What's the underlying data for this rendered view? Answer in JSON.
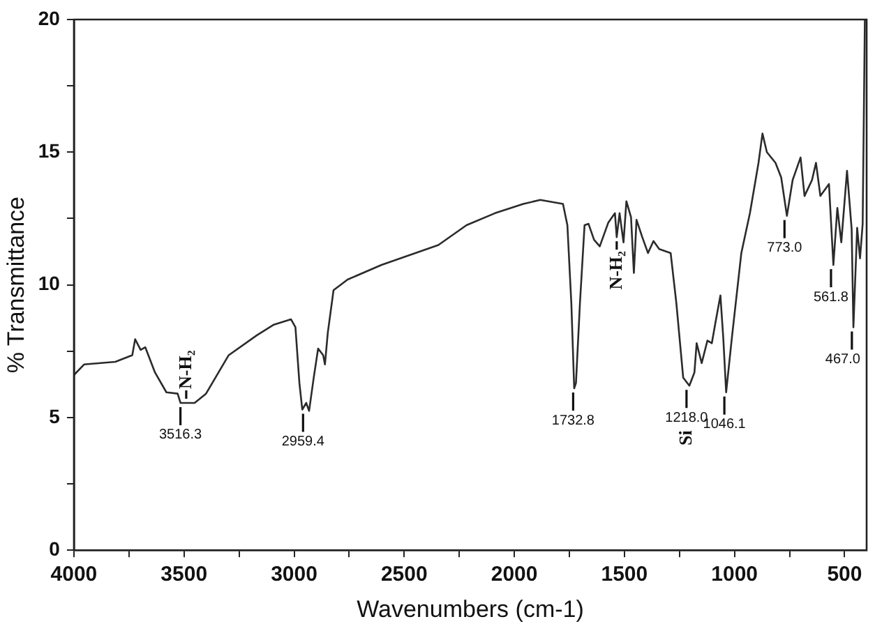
{
  "chart_data": {
    "type": "line",
    "xlabel": "Wavenumbers (cm-1)",
    "ylabel": "% Transmittance",
    "xlim": [
      4000,
      400
    ],
    "ylim": [
      0,
      20
    ],
    "xticks": [
      4000,
      {
        "value": 3750,
        "label": null
      },
      3500,
      {
        "value": 3250,
        "label": null
      },
      3000,
      {
        "value": 2750,
        "label": null
      },
      2500,
      {
        "value": 2250,
        "label": null
      },
      2000,
      {
        "value": 1750,
        "label": null
      },
      1500,
      {
        "value": 1250,
        "label": null
      },
      1000,
      {
        "value": 750,
        "label": null
      },
      500
    ],
    "yticks": [
      0,
      {
        "value": 2.5,
        "label": null
      },
      5,
      {
        "value": 7.5,
        "label": null
      },
      10,
      {
        "value": 12.5,
        "label": null
      },
      15,
      {
        "value": 17.5,
        "label": null
      },
      20
    ],
    "grid": false,
    "legend": false,
    "marker": "none",
    "line_style": "solid",
    "series": [
      {
        "color": "#2b2b2b",
        "x": [
          4000,
          3954,
          3812,
          3735,
          3722,
          3697,
          3676,
          3632,
          3580,
          3529,
          3516,
          3452,
          3400,
          3297,
          3169,
          3092,
          3014,
          2994,
          2976,
          2963,
          2945,
          2932,
          2911,
          2891,
          2868,
          2860,
          2847,
          2821,
          2757,
          2603,
          2345,
          2217,
          2088,
          1959,
          1882,
          1779,
          1759,
          1741,
          1728,
          1720,
          1702,
          1681,
          1663,
          1638,
          1612,
          1573,
          1543,
          1535,
          1522,
          1504,
          1491,
          1470,
          1457,
          1445,
          1419,
          1393,
          1368,
          1342,
          1290,
          1264,
          1233,
          1205,
          1182,
          1172,
          1149,
          1123,
          1103,
          1085,
          1064,
          1051,
          1038,
          1012,
          969,
          930,
          891,
          873,
          853,
          814,
          788,
          762,
          736,
          700,
          682,
          648,
          630,
          610,
          571,
          551,
          533,
          515,
          489,
          468,
          460,
          443,
          430,
          418,
          408
        ],
        "values": [
          6.6,
          7.0,
          7.1,
          7.35,
          7.95,
          7.55,
          7.65,
          6.7,
          5.95,
          5.9,
          5.55,
          5.55,
          5.9,
          7.35,
          8.1,
          8.5,
          8.7,
          8.4,
          6.3,
          5.3,
          5.55,
          5.25,
          6.5,
          7.6,
          7.35,
          7.0,
          8.2,
          9.8,
          10.2,
          10.75,
          11.5,
          12.25,
          12.7,
          13.05,
          13.2,
          13.05,
          12.25,
          9.3,
          6.1,
          6.3,
          9.3,
          12.25,
          12.3,
          11.7,
          11.45,
          12.35,
          12.7,
          11.8,
          12.7,
          11.6,
          13.15,
          12.55,
          10.45,
          12.45,
          11.8,
          11.2,
          11.65,
          11.35,
          11.2,
          9.3,
          6.5,
          6.2,
          6.7,
          7.8,
          7.05,
          7.9,
          7.8,
          8.65,
          9.6,
          8.0,
          5.95,
          8.0,
          11.2,
          12.7,
          14.6,
          15.7,
          15.0,
          14.6,
          14.05,
          12.6,
          13.95,
          14.8,
          13.35,
          13.95,
          14.6,
          13.35,
          13.8,
          10.75,
          12.9,
          11.6,
          14.3,
          12.1,
          8.4,
          12.15,
          11.0,
          12.3,
          20
        ]
      }
    ],
    "annotations": [
      {
        "text": "3516.3",
        "x": 3516.3,
        "y": 5.55
      },
      {
        "text": "2959.4",
        "x": 2959.4,
        "y": 5.3
      },
      {
        "text": "1732.8",
        "x": 1732.8,
        "y": 6.1
      },
      {
        "text": "1218.0",
        "x": 1218.0,
        "y": 6.2
      },
      {
        "text": "1046.1",
        "x": 1046.1,
        "y": 5.95
      },
      {
        "text": "773.0",
        "x": 773.0,
        "y": 12.6
      },
      {
        "text": "561.8",
        "x": 561.8,
        "y": 10.75
      },
      {
        "text": "467.0",
        "x": 467.0,
        "y": 8.4
      },
      {
        "text": "N-H₂",
        "x": 3490,
        "y": 5.55
      },
      {
        "text": "N-H₂",
        "x": 1535,
        "y": 11.8
      },
      {
        "text": "Si",
        "x": 1218.0,
        "y": 6.2
      }
    ]
  }
}
